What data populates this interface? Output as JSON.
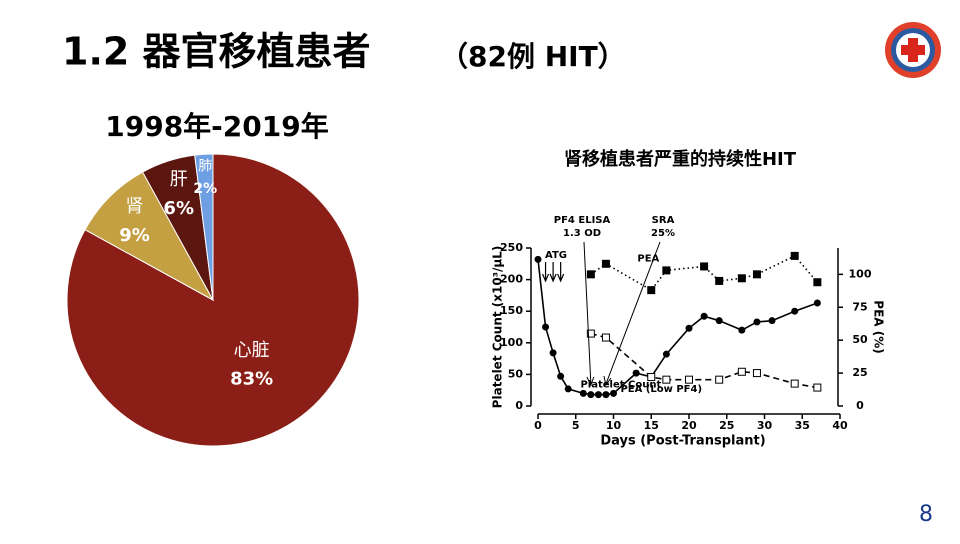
{
  "slide": {
    "title": "1.2 器官移植患者",
    "title_suffix": "（82例 HIT）",
    "page_number": "8"
  },
  "chart_data": [
    {
      "type": "pie",
      "title": "1998年-2019年",
      "categories": [
        "心脏",
        "肾",
        "肝",
        "肺"
      ],
      "values": [
        83,
        9,
        6,
        2
      ],
      "value_labels": [
        "83%",
        "9%",
        "6%",
        "2%"
      ],
      "colors": [
        "#8b1e16",
        "#c4a043",
        "#5b1610",
        "#6f9fe3"
      ]
    },
    {
      "type": "line",
      "title": "肾移植患者严重的持续性HIT",
      "x_label": "Days (Post-Transplant)",
      "y_label": "Platelet Count (x10³/µL)",
      "y2_label": "PEA (%)",
      "xlim": [
        0,
        40
      ],
      "xticks": [
        0,
        5,
        10,
        15,
        20,
        25,
        30,
        35,
        40
      ],
      "ylim": [
        0,
        250
      ],
      "yticks": [
        0,
        50,
        100,
        150,
        200,
        250
      ],
      "y2lim": [
        0,
        120
      ],
      "y2ticks": [
        0,
        25,
        50,
        75,
        100
      ],
      "annotations": [
        "ATG",
        "PF4 ELISA",
        "1.3 OD",
        "SRA",
        "25%"
      ],
      "series": [
        {
          "name": "Platelet Count",
          "color": "#000000",
          "marker": "circle",
          "linestyle": "solid",
          "x": [
            0,
            1,
            2,
            3,
            4,
            6,
            7,
            8,
            9,
            10,
            13,
            15,
            17,
            20,
            22,
            24,
            27,
            29,
            31,
            34,
            37
          ],
          "values": [
            232,
            125,
            84,
            47,
            27,
            20,
            18,
            18,
            18,
            20,
            52,
            46,
            82,
            123,
            142,
            135,
            120,
            133,
            135,
            150,
            163
          ]
        },
        {
          "name": "PEA",
          "color": "#000000",
          "marker": "square",
          "linestyle": "dotted",
          "axis": "y2",
          "x": [
            7,
            9,
            15,
            17,
            22,
            24,
            27,
            29,
            34,
            37
          ],
          "values": [
            100,
            108,
            88,
            103,
            106,
            95,
            97,
            100,
            114,
            94
          ]
        },
        {
          "name": "PEA (Low PF4)",
          "color": "#000000",
          "marker": "square-open",
          "linestyle": "dashed",
          "axis": "y2",
          "x": [
            7,
            9,
            15,
            17,
            20,
            24,
            27,
            29,
            34,
            37
          ],
          "values": [
            55,
            52,
            22,
            20,
            20,
            20,
            26,
            25,
            17,
            14
          ]
        }
      ]
    }
  ]
}
